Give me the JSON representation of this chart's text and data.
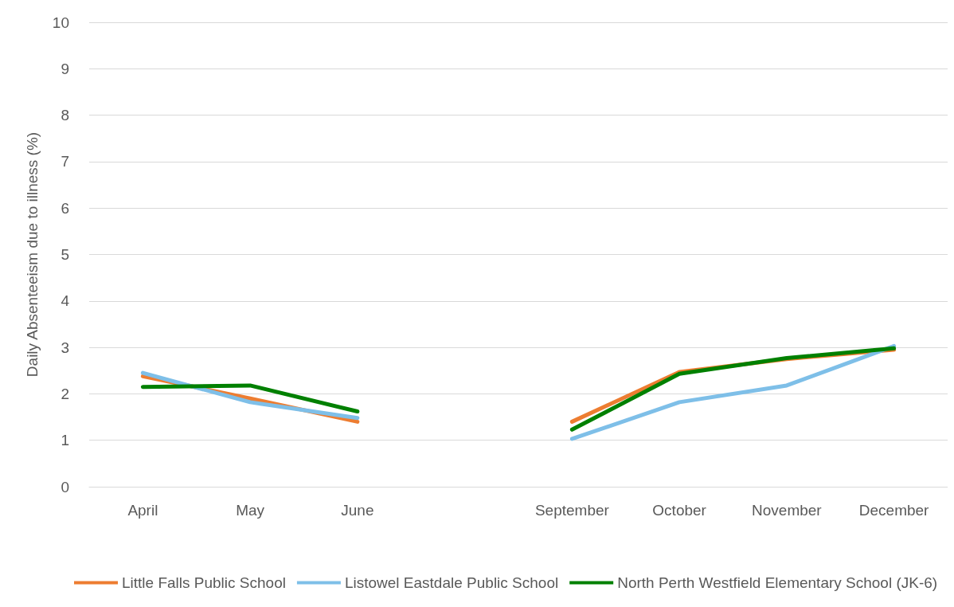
{
  "chart_data": {
    "type": "line",
    "ylabel": "Daily Absenteeism due to illness (%)",
    "categories": [
      "April",
      "May",
      "June",
      null,
      "September",
      "October",
      "November",
      "December"
    ],
    "series": [
      {
        "name": "Little Falls Public School",
        "color": "#ed7d31",
        "values": [
          2.38,
          1.9,
          1.4,
          null,
          1.4,
          2.47,
          2.75,
          2.95
        ]
      },
      {
        "name": "Listowel Eastdale Public School",
        "color": "#7ebfe8",
        "values": [
          2.45,
          1.82,
          1.48,
          null,
          1.03,
          1.82,
          2.18,
          3.03
        ]
      },
      {
        "name": "North Perth Westfield Elementary School (JK-6)",
        "color": "#008000",
        "values": [
          2.15,
          2.18,
          1.62,
          null,
          1.23,
          2.43,
          2.77,
          2.98
        ]
      }
    ],
    "ylim": [
      0,
      10
    ],
    "yticks": [
      0,
      1,
      2,
      3,
      4,
      5,
      6,
      7,
      8,
      9,
      10
    ],
    "grid": "y",
    "legend": "bottom",
    "marker": "none",
    "line_style": "solid"
  }
}
